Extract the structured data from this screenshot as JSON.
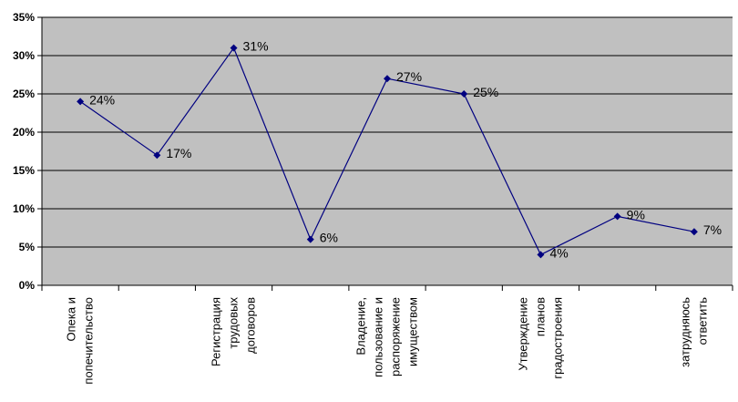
{
  "chart_data": {
    "type": "line",
    "categories": [
      "Опека и попечительство",
      "",
      "Регистрация трудовых договоров",
      "",
      "Владение, пользование и распоряжение имуществом",
      "",
      "Утверждение планов градостроения",
      "",
      "затрудняюсь ответить"
    ],
    "category_lines": [
      [
        "Опека и",
        "попечительство"
      ],
      [],
      [
        "Регистрация",
        "трудовых",
        "договоров"
      ],
      [],
      [
        "Владение,",
        "пользование и",
        "распоряжение",
        "имуществом"
      ],
      [],
      [
        "Утверждение",
        "планов",
        "градостроения"
      ],
      [],
      [
        "затрудняюсь",
        "ответить"
      ]
    ],
    "values": [
      24,
      17,
      31,
      6,
      27,
      25,
      4,
      9,
      7
    ],
    "data_labels": [
      "24%",
      "17%",
      "31%",
      "6%",
      "27%",
      "25%",
      "4%",
      "9%",
      "7%"
    ],
    "y_ticks": [
      "0%",
      "5%",
      "10%",
      "15%",
      "20%",
      "25%",
      "30%",
      "35%"
    ],
    "ylim": [
      0,
      35
    ],
    "grid": true,
    "legend": "none",
    "colors": {
      "plot_background": "#c0c0c0",
      "line": "#000080",
      "marker": "#000080",
      "gridline": "#000000"
    }
  }
}
